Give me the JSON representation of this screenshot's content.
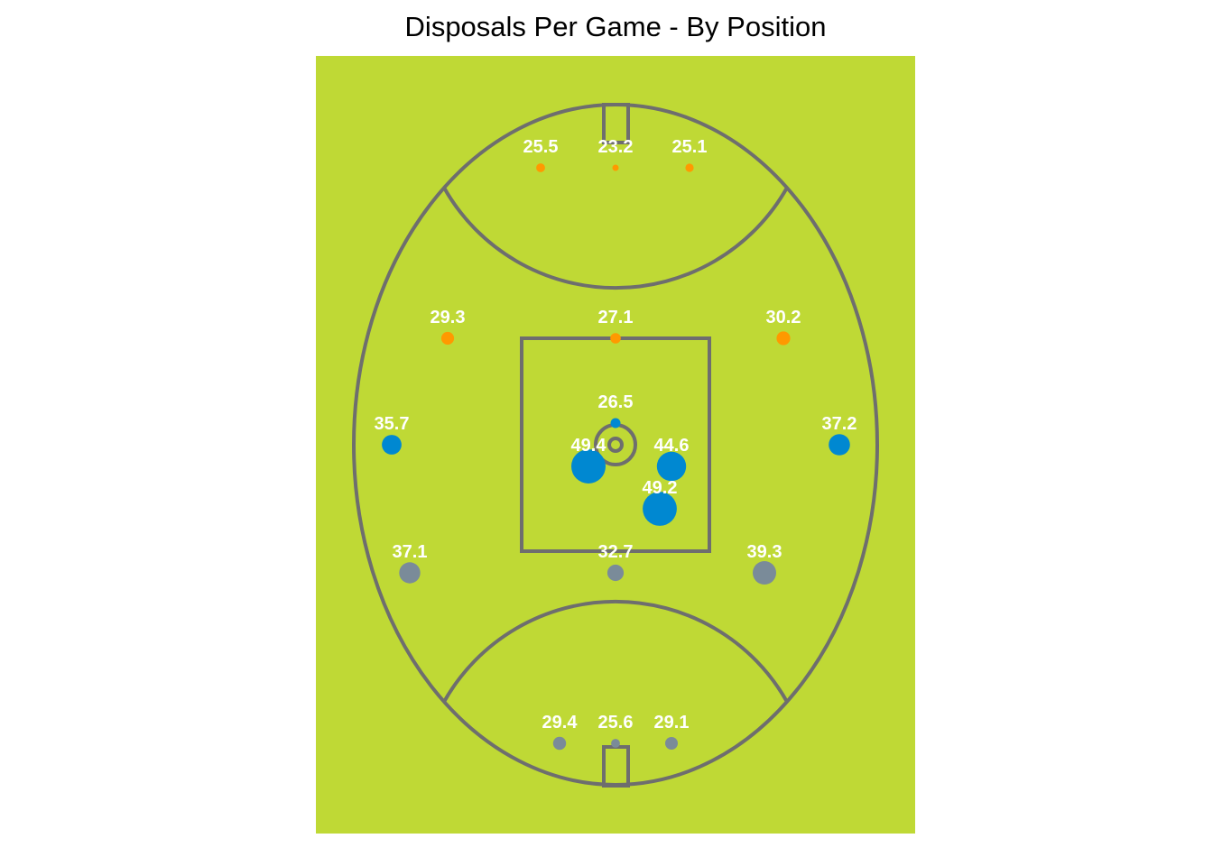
{
  "chart_data": {
    "type": "scatter",
    "title": "Disposals Per Game - By Position",
    "xlabel": "",
    "ylabel": "",
    "grid": false,
    "legend": "none",
    "colors": {
      "field": "#bfd935",
      "lines": "#6e6e6e",
      "title": "#000000",
      "label": "#ffffff",
      "forward": "#ff9900",
      "midfield": "#0088d1",
      "defence": "#7a8b99"
    },
    "series": [
      {
        "group": "forward",
        "points": [
          {
            "position": "LFP",
            "value": 25.5
          },
          {
            "position": "FF",
            "value": 23.2
          },
          {
            "position": "RFP",
            "value": 25.1
          },
          {
            "position": "LHF",
            "value": 29.3
          },
          {
            "position": "CHF",
            "value": 27.1
          },
          {
            "position": "RHF",
            "value": 30.2
          }
        ]
      },
      {
        "group": "midfield",
        "points": [
          {
            "position": "LW",
            "value": 35.7
          },
          {
            "position": "RW",
            "value": 37.2
          },
          {
            "position": "RUCK",
            "value": 26.5
          },
          {
            "position": "RR",
            "value": 49.4
          },
          {
            "position": "R",
            "value": 44.6
          },
          {
            "position": "C",
            "value": 49.2
          }
        ]
      },
      {
        "group": "defence",
        "points": [
          {
            "position": "LHB",
            "value": 37.1
          },
          {
            "position": "CHB",
            "value": 32.7
          },
          {
            "position": "RHB",
            "value": 39.3
          },
          {
            "position": "LBP",
            "value": 29.4
          },
          {
            "position": "FB",
            "value": 25.6
          },
          {
            "position": "RBP",
            "value": 29.1
          }
        ]
      }
    ]
  }
}
